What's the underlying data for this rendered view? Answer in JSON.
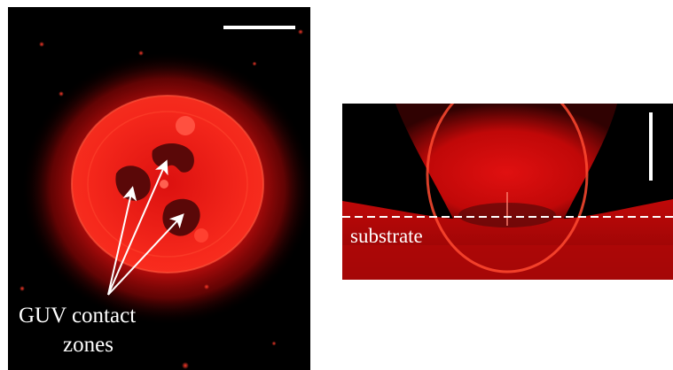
{
  "left_panel": {
    "annotation_line1": "GUV contact",
    "annotation_line2": "zones"
  },
  "right_panel": {
    "substrate_label": "substrate"
  },
  "colors": {
    "fluorescence": "#ff1a1a",
    "background": "#000000",
    "annotation": "#ffffff"
  }
}
